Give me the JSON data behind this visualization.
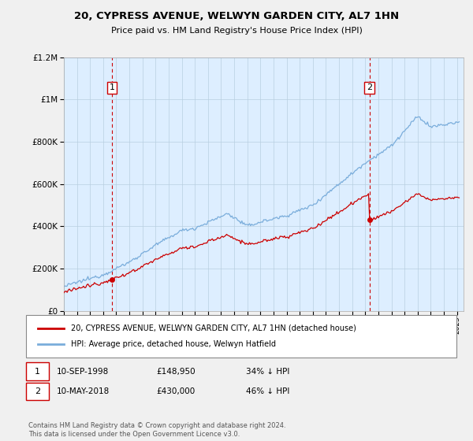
{
  "title": "20, CYPRESS AVENUE, WELWYN GARDEN CITY, AL7 1HN",
  "subtitle": "Price paid vs. HM Land Registry's House Price Index (HPI)",
  "legend_label_red": "20, CYPRESS AVENUE, WELWYN GARDEN CITY, AL7 1HN (detached house)",
  "legend_label_blue": "HPI: Average price, detached house, Welwyn Hatfield",
  "annotation1_label": "1",
  "annotation1_date": "10-SEP-1998",
  "annotation1_price": "£148,950",
  "annotation1_hpi": "34% ↓ HPI",
  "annotation2_label": "2",
  "annotation2_date": "10-MAY-2018",
  "annotation2_price": "£430,000",
  "annotation2_hpi": "46% ↓ HPI",
  "footer": "Contains HM Land Registry data © Crown copyright and database right 2024.\nThis data is licensed under the Open Government Licence v3.0.",
  "point1_year": 1998.67,
  "point1_value": 148950,
  "point2_year": 2018.33,
  "point2_value": 430000,
  "vline1_year": 1998.67,
  "vline2_year": 2018.33,
  "color_red": "#cc0000",
  "color_blue": "#7aaddb",
  "color_fill": "#ddeeff",
  "color_vline": "#cc0000",
  "ylim_min": 0,
  "ylim_max": 1200000,
  "xlim_min": 1995.0,
  "xlim_max": 2025.5,
  "background_color": "#f0f0f0",
  "plot_bg_color": "#ddeeff"
}
